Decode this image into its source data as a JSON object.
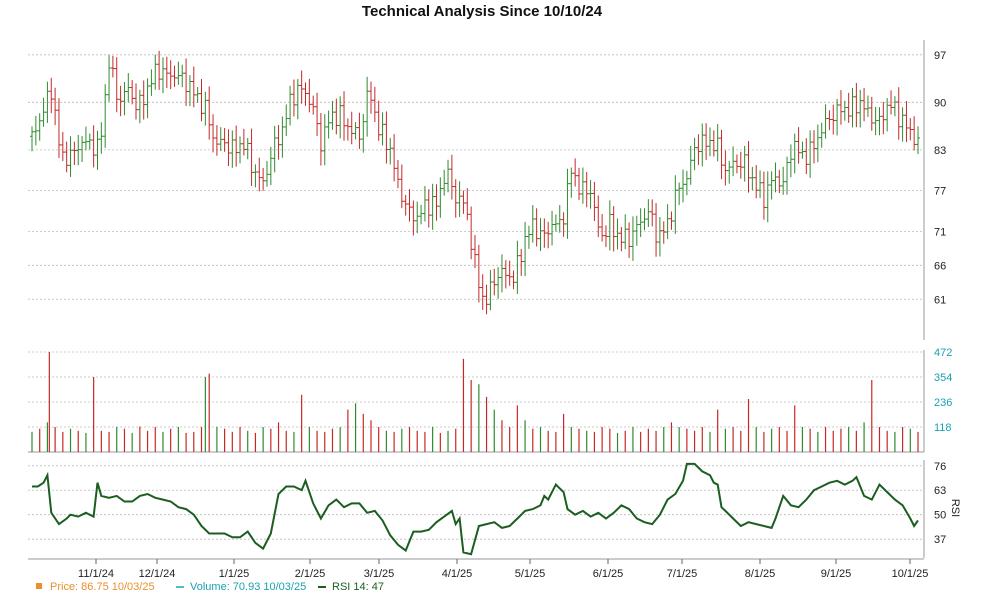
{
  "chart_data": {
    "type": "ohlc",
    "title": "Technical Analysis Since 10/10/24",
    "x_tick_labels": [
      "11/1/24",
      "12/1/24",
      "1/1/25",
      "2/1/25",
      "3/1/25",
      "4/1/25",
      "5/1/25",
      "6/1/25",
      "7/1/25",
      "8/1/25",
      "9/1/25",
      "10/1/25"
    ],
    "price_axis": {
      "ticks": [
        "97",
        "90",
        "83",
        "77",
        "71",
        "66",
        "61"
      ],
      "range": [
        55,
        98
      ]
    },
    "volume_axis": {
      "ticks": [
        "472",
        "354",
        "236",
        "118"
      ],
      "range": [
        0,
        472
      ]
    },
    "rsi_axis": {
      "ticks": [
        "76",
        "63",
        "50",
        "37"
      ],
      "label": "RSI",
      "range": [
        27,
        78
      ]
    },
    "price_close_series": [
      [
        0,
        85
      ],
      [
        5,
        88
      ],
      [
        10,
        92
      ],
      [
        15,
        82
      ],
      [
        20,
        82
      ],
      [
        25,
        84
      ],
      [
        30,
        84
      ],
      [
        35,
        83
      ],
      [
        40,
        96
      ],
      [
        45,
        90
      ],
      [
        50,
        92
      ],
      [
        55,
        89
      ],
      [
        60,
        92
      ],
      [
        65,
        95
      ],
      [
        70,
        94
      ],
      [
        75,
        94
      ],
      [
        80,
        93
      ],
      [
        85,
        91
      ],
      [
        90,
        89
      ],
      [
        95,
        84
      ],
      [
        100,
        84
      ],
      [
        105,
        83
      ],
      [
        110,
        84
      ],
      [
        115,
        80
      ],
      [
        120,
        78
      ],
      [
        125,
        83
      ],
      [
        130,
        86
      ],
      [
        135,
        91
      ],
      [
        140,
        92
      ],
      [
        145,
        90
      ],
      [
        150,
        84
      ],
      [
        155,
        88
      ],
      [
        160,
        88
      ],
      [
        165,
        86
      ],
      [
        170,
        85
      ],
      [
        175,
        92
      ],
      [
        180,
        86
      ],
      [
        185,
        84
      ],
      [
        190,
        78
      ],
      [
        195,
        74
      ],
      [
        200,
        73
      ],
      [
        205,
        75
      ],
      [
        210,
        75
      ],
      [
        215,
        80
      ],
      [
        220,
        76
      ],
      [
        225,
        75
      ],
      [
        230,
        66
      ],
      [
        235,
        60
      ],
      [
        240,
        64
      ],
      [
        245,
        65
      ],
      [
        250,
        64
      ],
      [
        255,
        69
      ],
      [
        260,
        72
      ],
      [
        265,
        70
      ],
      [
        270,
        72
      ],
      [
        275,
        72
      ],
      [
        280,
        80
      ],
      [
        285,
        77
      ],
      [
        290,
        77
      ],
      [
        295,
        70
      ],
      [
        300,
        72
      ],
      [
        305,
        70
      ],
      [
        310,
        70
      ],
      [
        315,
        72
      ],
      [
        320,
        74
      ],
      [
        325,
        70
      ],
      [
        330,
        72
      ],
      [
        335,
        77
      ],
      [
        340,
        79
      ],
      [
        345,
        84
      ],
      [
        350,
        84
      ],
      [
        355,
        84
      ],
      [
        360,
        80
      ],
      [
        365,
        81
      ],
      [
        370,
        81
      ],
      [
        375,
        78
      ],
      [
        380,
        76
      ],
      [
        385,
        79
      ],
      [
        390,
        78
      ],
      [
        395,
        84
      ],
      [
        400,
        82
      ],
      [
        405,
        83
      ],
      [
        410,
        86
      ],
      [
        415,
        88
      ],
      [
        420,
        89
      ],
      [
        425,
        89
      ],
      [
        430,
        90
      ],
      [
        435,
        88
      ],
      [
        440,
        87
      ],
      [
        445,
        90
      ],
      [
        450,
        88
      ],
      [
        455,
        86
      ],
      [
        460,
        84
      ]
    ],
    "volume_series": [
      [
        0,
        95
      ],
      [
        4,
        110
      ],
      [
        8,
        140
      ],
      [
        9,
        472
      ],
      [
        12,
        118
      ],
      [
        16,
        95
      ],
      [
        20,
        110
      ],
      [
        24,
        100
      ],
      [
        28,
        90
      ],
      [
        32,
        354
      ],
      [
        36,
        100
      ],
      [
        40,
        95
      ],
      [
        44,
        118
      ],
      [
        48,
        110
      ],
      [
        52,
        90
      ],
      [
        56,
        120
      ],
      [
        60,
        100
      ],
      [
        64,
        118
      ],
      [
        68,
        95
      ],
      [
        72,
        110
      ],
      [
        76,
        118
      ],
      [
        80,
        90
      ],
      [
        84,
        95
      ],
      [
        88,
        118
      ],
      [
        90,
        354
      ],
      [
        92,
        370
      ],
      [
        96,
        118
      ],
      [
        100,
        110
      ],
      [
        104,
        95
      ],
      [
        108,
        118
      ],
      [
        112,
        100
      ],
      [
        116,
        90
      ],
      [
        120,
        118
      ],
      [
        124,
        110
      ],
      [
        128,
        140
      ],
      [
        132,
        100
      ],
      [
        136,
        95
      ],
      [
        140,
        270
      ],
      [
        144,
        118
      ],
      [
        148,
        100
      ],
      [
        152,
        95
      ],
      [
        156,
        110
      ],
      [
        160,
        118
      ],
      [
        164,
        200
      ],
      [
        168,
        230
      ],
      [
        172,
        180
      ],
      [
        176,
        150
      ],
      [
        180,
        118
      ],
      [
        184,
        100
      ],
      [
        188,
        95
      ],
      [
        192,
        110
      ],
      [
        196,
        118
      ],
      [
        200,
        100
      ],
      [
        204,
        95
      ],
      [
        208,
        118
      ],
      [
        212,
        90
      ],
      [
        216,
        100
      ],
      [
        220,
        110
      ],
      [
        224,
        440
      ],
      [
        228,
        340
      ],
      [
        232,
        320
      ],
      [
        236,
        260
      ],
      [
        240,
        200
      ],
      [
        244,
        150
      ],
      [
        248,
        118
      ],
      [
        252,
        220
      ],
      [
        256,
        150
      ],
      [
        260,
        110
      ],
      [
        264,
        118
      ],
      [
        268,
        100
      ],
      [
        272,
        95
      ],
      [
        276,
        180
      ],
      [
        280,
        118
      ],
      [
        284,
        110
      ],
      [
        288,
        100
      ],
      [
        292,
        95
      ],
      [
        296,
        118
      ],
      [
        300,
        110
      ],
      [
        304,
        90
      ],
      [
        308,
        100
      ],
      [
        312,
        118
      ],
      [
        316,
        95
      ],
      [
        320,
        110
      ],
      [
        324,
        100
      ],
      [
        328,
        118
      ],
      [
        332,
        140
      ],
      [
        336,
        118
      ],
      [
        340,
        110
      ],
      [
        344,
        100
      ],
      [
        348,
        118
      ],
      [
        352,
        95
      ],
      [
        356,
        200
      ],
      [
        360,
        110
      ],
      [
        364,
        118
      ],
      [
        368,
        100
      ],
      [
        372,
        250
      ],
      [
        376,
        118
      ],
      [
        380,
        95
      ],
      [
        384,
        110
      ],
      [
        388,
        118
      ],
      [
        392,
        100
      ],
      [
        396,
        220
      ],
      [
        400,
        118
      ],
      [
        404,
        110
      ],
      [
        408,
        95
      ],
      [
        412,
        118
      ],
      [
        416,
        100
      ],
      [
        420,
        110
      ],
      [
        424,
        118
      ],
      [
        428,
        100
      ],
      [
        432,
        140
      ],
      [
        436,
        340
      ],
      [
        440,
        118
      ],
      [
        444,
        100
      ],
      [
        448,
        95
      ],
      [
        452,
        118
      ],
      [
        456,
        110
      ],
      [
        460,
        95
      ]
    ],
    "rsi_series": [
      [
        0,
        65
      ],
      [
        3,
        65
      ],
      [
        6,
        67
      ],
      [
        8,
        71
      ],
      [
        10,
        51
      ],
      [
        14,
        45
      ],
      [
        18,
        48
      ],
      [
        20,
        50
      ],
      [
        24,
        49
      ],
      [
        28,
        51
      ],
      [
        32,
        49
      ],
      [
        34,
        67
      ],
      [
        36,
        60
      ],
      [
        40,
        59
      ],
      [
        44,
        60
      ],
      [
        48,
        57
      ],
      [
        52,
        57
      ],
      [
        56,
        60
      ],
      [
        60,
        61
      ],
      [
        64,
        59
      ],
      [
        68,
        58
      ],
      [
        72,
        57
      ],
      [
        76,
        54
      ],
      [
        80,
        53
      ],
      [
        84,
        50
      ],
      [
        88,
        44
      ],
      [
        92,
        40
      ],
      [
        96,
        40
      ],
      [
        100,
        40
      ],
      [
        104,
        38
      ],
      [
        108,
        38
      ],
      [
        112,
        41
      ],
      [
        116,
        35
      ],
      [
        120,
        32
      ],
      [
        124,
        40
      ],
      [
        128,
        61
      ],
      [
        132,
        65
      ],
      [
        136,
        65
      ],
      [
        140,
        63
      ],
      [
        142,
        68
      ],
      [
        146,
        56
      ],
      [
        150,
        48
      ],
      [
        154,
        55
      ],
      [
        158,
        58
      ],
      [
        162,
        54
      ],
      [
        166,
        56
      ],
      [
        170,
        56
      ],
      [
        174,
        51
      ],
      [
        178,
        52
      ],
      [
        182,
        47
      ],
      [
        186,
        39
      ],
      [
        190,
        34
      ],
      [
        194,
        31
      ],
      [
        198,
        41
      ],
      [
        202,
        41
      ],
      [
        206,
        42
      ],
      [
        210,
        46
      ],
      [
        214,
        49
      ],
      [
        218,
        52
      ],
      [
        220,
        45
      ],
      [
        222,
        48
      ],
      [
        224,
        30
      ],
      [
        228,
        29
      ],
      [
        232,
        44
      ],
      [
        236,
        45
      ],
      [
        240,
        46
      ],
      [
        244,
        43
      ],
      [
        248,
        44
      ],
      [
        252,
        48
      ],
      [
        256,
        52
      ],
      [
        260,
        53
      ],
      [
        264,
        55
      ],
      [
        266,
        60
      ],
      [
        268,
        58
      ],
      [
        270,
        62
      ],
      [
        272,
        66
      ],
      [
        274,
        64
      ],
      [
        276,
        62
      ],
      [
        278,
        53
      ],
      [
        282,
        50
      ],
      [
        286,
        52
      ],
      [
        290,
        49
      ],
      [
        294,
        51
      ],
      [
        298,
        48
      ],
      [
        302,
        51
      ],
      [
        306,
        55
      ],
      [
        310,
        53
      ],
      [
        314,
        48
      ],
      [
        318,
        46
      ],
      [
        322,
        45
      ],
      [
        326,
        50
      ],
      [
        330,
        58
      ],
      [
        334,
        61
      ],
      [
        338,
        68
      ],
      [
        340,
        77
      ],
      [
        344,
        77
      ],
      [
        348,
        73
      ],
      [
        352,
        71
      ],
      [
        354,
        67
      ],
      [
        356,
        66
      ],
      [
        358,
        54
      ],
      [
        360,
        52
      ],
      [
        364,
        48
      ],
      [
        368,
        44
      ],
      [
        372,
        46
      ],
      [
        376,
        45
      ],
      [
        380,
        44
      ],
      [
        384,
        43
      ],
      [
        386,
        48
      ],
      [
        390,
        60
      ],
      [
        394,
        55
      ],
      [
        398,
        54
      ],
      [
        402,
        58
      ],
      [
        406,
        63
      ],
      [
        410,
        65
      ],
      [
        414,
        67
      ],
      [
        418,
        68
      ],
      [
        422,
        66
      ],
      [
        426,
        68
      ],
      [
        428,
        70
      ],
      [
        432,
        60
      ],
      [
        436,
        58
      ],
      [
        440,
        66
      ],
      [
        444,
        62
      ],
      [
        448,
        58
      ],
      [
        452,
        55
      ],
      [
        456,
        48
      ],
      [
        458,
        44
      ],
      [
        460,
        47
      ]
    ],
    "colors": {
      "up": "#2e8b2e",
      "down": "#c62828",
      "rsi": "#1b5e20",
      "price_legend": "#e8912c",
      "volume_legend": "#1aa2b0",
      "grid": "#bbbbbb"
    },
    "legend": [
      {
        "name": "price",
        "label": "Price: 86.75  10/03/25",
        "color": "#e8912c"
      },
      {
        "name": "volume",
        "label": "Volume: 70.93  10/03/25",
        "color": "#1aa2b0"
      },
      {
        "name": "rsi",
        "label": "RSI 14: 47",
        "color": "#1b5e20"
      }
    ]
  }
}
